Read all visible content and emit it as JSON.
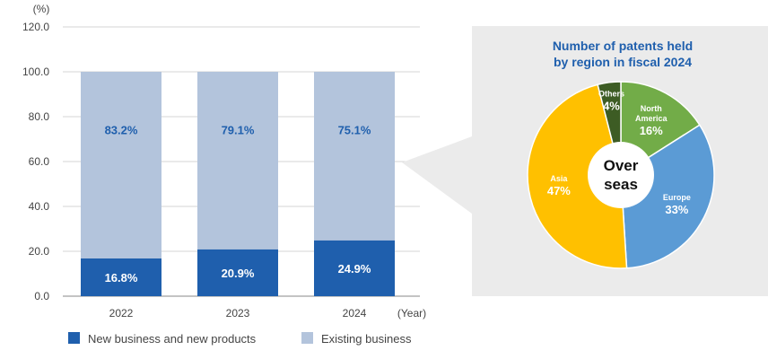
{
  "chart_data": [
    {
      "type": "bar",
      "stacked": true,
      "ylabel": "(%)",
      "xlabel": "(Year)",
      "categories": [
        "2022",
        "2023",
        "2024"
      ],
      "ylim": [
        0,
        120
      ],
      "yticks": [
        "0.0",
        "20.0",
        "40.0",
        "60.0",
        "80.0",
        "100.0",
        "120.0"
      ],
      "grid": true,
      "series": [
        {
          "name": "New business and new products",
          "values": [
            16.8,
            20.9,
            24.9
          ],
          "labels": [
            "16.8%",
            "20.9%",
            "24.9%"
          ],
          "color": "#1f5fad"
        },
        {
          "name": "Existing business",
          "values": [
            83.2,
            79.1,
            75.1
          ],
          "labels": [
            "83.2%",
            "79.1%",
            "75.1%"
          ],
          "color": "#b3c4dc"
        }
      ],
      "legend_position": "bottom"
    },
    {
      "type": "pie",
      "title": "Number of patents held by region in fiscal 2024",
      "title_lines": [
        "Number of patents held",
        "by region in fiscal 2024"
      ],
      "center_label_lines": [
        "Over",
        "seas"
      ],
      "slices": [
        {
          "label": "North America",
          "label_lines": [
            "North",
            "America"
          ],
          "value": 16,
          "value_label": "16%",
          "color": "#72ac48"
        },
        {
          "label": "Europe",
          "label_lines": [
            "Europe"
          ],
          "value": 33,
          "value_label": "33%",
          "color": "#5b9bd5"
        },
        {
          "label": "Asia",
          "label_lines": [
            "Asia"
          ],
          "value": 47,
          "value_label": "47%",
          "color": "#ffc000"
        },
        {
          "label": "Others",
          "label_lines": [
            "Others"
          ],
          "value": 4,
          "value_label": "4%",
          "color": "#3d5c24"
        }
      ],
      "panel_color": "#ebebeb",
      "title_color": "#1f5fad"
    }
  ]
}
